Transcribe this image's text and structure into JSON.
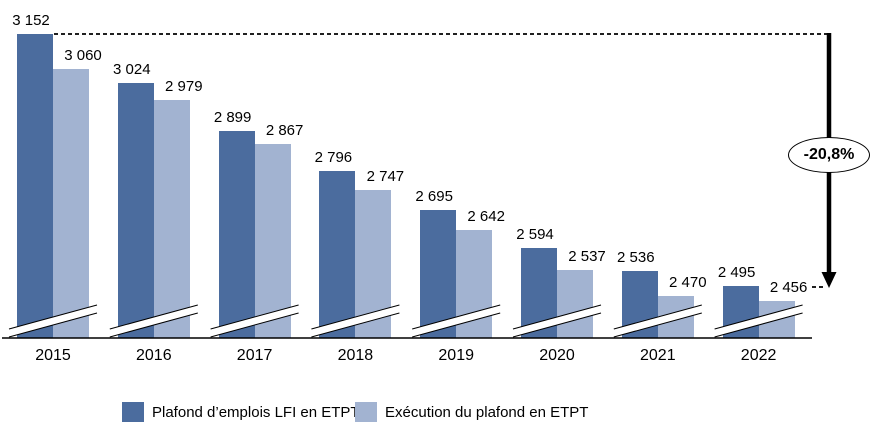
{
  "chart_data": {
    "type": "bar",
    "title": "",
    "xlabel": "",
    "ylabel": "",
    "grid": false,
    "axis_break": true,
    "legend_position": "bottom",
    "categories": [
      "2015",
      "2016",
      "2017",
      "2018",
      "2019",
      "2020",
      "2021",
      "2022"
    ],
    "series": [
      {
        "name": "Plafond d’emplois LFI en ETPT",
        "color": "#4B6C9E",
        "values": [
          3152,
          3024,
          2899,
          2796,
          2695,
          2594,
          2536,
          2495
        ],
        "labels": [
          "3 152",
          "3 024",
          "2 899",
          "2 796",
          "2 695",
          "2 594",
          "2 536",
          "2 495"
        ]
      },
      {
        "name": "Exécution du plafond en ETPT",
        "color": "#A2B3D1",
        "values": [
          3060,
          2979,
          2867,
          2747,
          2642,
          2537,
          2470,
          2456
        ],
        "labels": [
          "3 060",
          "2 979",
          "2 867",
          "2 747",
          "2 642",
          "2 537",
          "2 470",
          "2 456"
        ]
      }
    ],
    "annotation": {
      "label": "-20,8%"
    },
    "value_range_shown": [
      2364,
      3152
    ]
  }
}
